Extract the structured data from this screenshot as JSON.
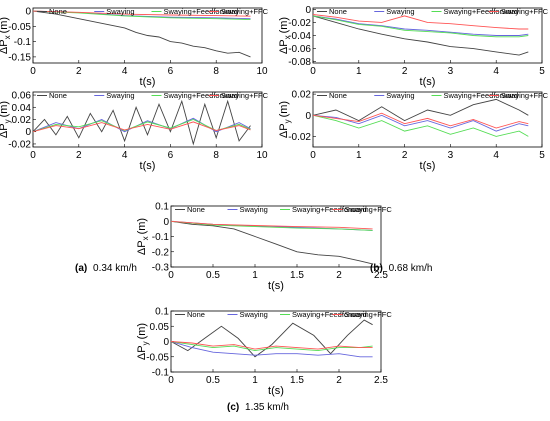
{
  "colors": {
    "None": "#444444",
    "Swaying": "#6666dd",
    "Swaying+Feedforward": "#55dd55",
    "Swaying+FFC": "#ff5555"
  },
  "captions": [
    {
      "letter": "(a)",
      "text": "0.34 km/h"
    },
    {
      "letter": "(b)",
      "text": "0.68 km/h"
    },
    {
      "letter": "(c)",
      "text": "1.35 km/h"
    }
  ],
  "chart_data": [
    {
      "id": "a-top",
      "type": "line",
      "xlabel": "t(s)",
      "ylabel": "ΔP",
      "ylabel_sub": "x",
      "ylabel_unit": "(m)",
      "xlim": [
        0,
        10
      ],
      "ylim": [
        -0.17,
        0.01
      ],
      "xticks": [
        0,
        2,
        4,
        6,
        8,
        10
      ],
      "yticks": [
        0,
        -0.05,
        -0.1,
        -0.15
      ],
      "yticklabels": [
        "0",
        "-0.05",
        "-0.1",
        "-0.15"
      ],
      "legend_position": "top",
      "series": [
        {
          "name": "None",
          "x": [
            0,
            1,
            2,
            3,
            4,
            4.5,
            5,
            5.5,
            6,
            6.5,
            7,
            7.5,
            8,
            8.5,
            9,
            9.5
          ],
          "y": [
            0,
            -0.01,
            -0.025,
            -0.04,
            -0.055,
            -0.07,
            -0.08,
            -0.085,
            -0.1,
            -0.105,
            -0.115,
            -0.12,
            -0.13,
            -0.138,
            -0.135,
            -0.15
          ]
        },
        {
          "name": "Swaying",
          "x": [
            0,
            2,
            4,
            6,
            8,
            9.5
          ],
          "y": [
            0,
            -0.005,
            -0.015,
            -0.02,
            -0.022,
            -0.025
          ]
        },
        {
          "name": "Swaying+Feedforward",
          "x": [
            0,
            2,
            4,
            6,
            8,
            9.5
          ],
          "y": [
            0,
            -0.006,
            -0.016,
            -0.022,
            -0.025,
            -0.028
          ]
        },
        {
          "name": "Swaying+FFC",
          "x": [
            0,
            2,
            4,
            6,
            8,
            9.5
          ],
          "y": [
            0,
            -0.004,
            -0.01,
            -0.013,
            -0.015,
            -0.017
          ]
        }
      ]
    },
    {
      "id": "a-bot",
      "type": "line",
      "xlabel": "t(s)",
      "ylabel": "ΔP",
      "ylabel_sub": "y",
      "ylabel_unit": "(m)",
      "xlim": [
        0,
        10
      ],
      "ylim": [
        -0.025,
        0.065
      ],
      "xticks": [
        0,
        2,
        4,
        6,
        8,
        10
      ],
      "yticks": [
        -0.02,
        0,
        0.02,
        0.04,
        0.06
      ],
      "yticklabels": [
        "-0.02",
        "0",
        "0.02",
        "0.04",
        "0.06"
      ],
      "legend_position": "top",
      "series": [
        {
          "name": "None",
          "x": [
            0,
            0.5,
            1,
            1.5,
            2,
            2.5,
            3,
            3.5,
            4,
            4.5,
            5,
            5.5,
            6,
            6.5,
            7,
            7.5,
            8,
            8.5,
            9,
            9.5
          ],
          "y": [
            0,
            0.02,
            -0.005,
            0.025,
            -0.01,
            0.03,
            0.0,
            0.035,
            -0.015,
            0.04,
            -0.005,
            0.045,
            0.0,
            0.05,
            -0.02,
            0.045,
            -0.01,
            0.05,
            -0.015,
            0.01
          ]
        },
        {
          "name": "Swaying",
          "x": [
            0,
            1,
            2,
            3,
            4,
            5,
            6,
            7,
            8,
            9,
            9.5
          ],
          "y": [
            0,
            0.015,
            0.005,
            0.02,
            0.0,
            0.018,
            0.005,
            0.022,
            0.0,
            0.015,
            0.005
          ]
        },
        {
          "name": "Swaying+Feedforward",
          "x": [
            0,
            1,
            2,
            3,
            4,
            5,
            6,
            7,
            8,
            9,
            9.5
          ],
          "y": [
            0,
            0.012,
            0.008,
            0.018,
            0.002,
            0.016,
            0.006,
            0.02,
            0.002,
            0.012,
            0.004
          ]
        },
        {
          "name": "Swaying+FFC",
          "x": [
            0,
            1,
            2,
            3,
            4,
            5,
            6,
            7,
            8,
            9,
            9.5
          ],
          "y": [
            0,
            0.01,
            0.005,
            0.015,
            0.003,
            0.012,
            0.004,
            0.016,
            0.002,
            0.01,
            0.003
          ]
        }
      ]
    },
    {
      "id": "b-top",
      "type": "line",
      "xlabel": "t(s)",
      "ylabel": "ΔP",
      "ylabel_sub": "x",
      "ylabel_unit": "(m)",
      "xlim": [
        0,
        5
      ],
      "ylim": [
        -0.082,
        0.002
      ],
      "xticks": [
        0,
        1,
        2,
        3,
        4,
        5
      ],
      "yticks": [
        0,
        -0.02,
        -0.04,
        -0.06,
        -0.08
      ],
      "yticklabels": [
        "0",
        "-0.02",
        "-0.04",
        "-0.06",
        "-0.08"
      ],
      "legend_position": "top",
      "series": [
        {
          "name": "None",
          "x": [
            0,
            0.5,
            1,
            1.5,
            2,
            2.5,
            3,
            3.5,
            4,
            4.5,
            4.7
          ],
          "y": [
            -0.01,
            -0.02,
            -0.03,
            -0.038,
            -0.045,
            -0.05,
            -0.057,
            -0.06,
            -0.065,
            -0.07,
            -0.065
          ]
        },
        {
          "name": "Swaying",
          "x": [
            0,
            0.5,
            1,
            1.5,
            2,
            2.5,
            3,
            3.5,
            4,
            4.5,
            4.7
          ],
          "y": [
            -0.01,
            -0.015,
            -0.022,
            -0.025,
            -0.03,
            -0.032,
            -0.035,
            -0.038,
            -0.04,
            -0.04,
            -0.038
          ]
        },
        {
          "name": "Swaying+Feedforward",
          "x": [
            0,
            0.5,
            1,
            1.5,
            2,
            2.5,
            3,
            3.5,
            4,
            4.5,
            4.7
          ],
          "y": [
            -0.01,
            -0.016,
            -0.023,
            -0.026,
            -0.032,
            -0.034,
            -0.036,
            -0.04,
            -0.042,
            -0.042,
            -0.04
          ]
        },
        {
          "name": "Swaying+FFC",
          "x": [
            0,
            0.5,
            1,
            1.5,
            2,
            2.5,
            3,
            3.5,
            4,
            4.5,
            4.7
          ],
          "y": [
            -0.008,
            -0.012,
            -0.018,
            -0.02,
            -0.01,
            -0.02,
            -0.022,
            -0.025,
            -0.028,
            -0.03,
            -0.03
          ]
        }
      ]
    },
    {
      "id": "b-bot",
      "type": "line",
      "xlabel": "t(s)",
      "ylabel": "ΔP",
      "ylabel_sub": "y",
      "ylabel_unit": "(m)",
      "xlim": [
        0,
        5
      ],
      "ylim": [
        -0.03,
        0.022
      ],
      "xticks": [
        0,
        1,
        2,
        3,
        4,
        5
      ],
      "yticks": [
        -0.02,
        0,
        0.02
      ],
      "yticklabels": [
        "-0.02",
        "0",
        "0.02"
      ],
      "legend_position": "top",
      "series": [
        {
          "name": "None",
          "x": [
            0,
            0.5,
            1,
            1.5,
            2,
            2.5,
            3,
            3.5,
            4,
            4.5,
            4.7
          ],
          "y": [
            0,
            0.005,
            -0.005,
            0.008,
            -0.005,
            0.005,
            0.0,
            0.01,
            0.015,
            0.005,
            0.0
          ]
        },
        {
          "name": "Swaying",
          "x": [
            0,
            0.5,
            1,
            1.5,
            2,
            2.5,
            3,
            3.5,
            4,
            4.5,
            4.7
          ],
          "y": [
            0,
            -0.002,
            -0.008,
            0.0,
            -0.01,
            -0.005,
            -0.012,
            -0.005,
            -0.015,
            -0.008,
            -0.01
          ]
        },
        {
          "name": "Swaying+Feedforward",
          "x": [
            0,
            0.5,
            1,
            1.5,
            2,
            2.5,
            3,
            3.5,
            4,
            4.5,
            4.7
          ],
          "y": [
            0,
            -0.005,
            -0.012,
            -0.005,
            -0.015,
            -0.01,
            -0.018,
            -0.012,
            -0.02,
            -0.015,
            -0.02
          ]
        },
        {
          "name": "Swaying+FFC",
          "x": [
            0,
            0.5,
            1,
            1.5,
            2,
            2.5,
            3,
            3.5,
            4,
            4.5,
            4.7
          ],
          "y": [
            0,
            -0.003,
            -0.006,
            0.002,
            -0.008,
            -0.003,
            -0.01,
            -0.004,
            -0.012,
            -0.006,
            -0.008
          ]
        }
      ]
    },
    {
      "id": "c-top",
      "type": "line",
      "xlabel": "t(s)",
      "ylabel": "ΔP",
      "ylabel_sub": "x",
      "ylabel_unit": "(m)",
      "xlim": [
        0,
        2.5
      ],
      "ylim": [
        -0.3,
        0.1
      ],
      "xticks": [
        0,
        0.5,
        1,
        1.5,
        2,
        2.5
      ],
      "yticks": [
        0.1,
        0,
        -0.1,
        -0.2,
        -0.3
      ],
      "yticklabels": [
        "0.1",
        "0",
        "-0.1",
        "-0.2",
        "-0.3"
      ],
      "legend_position": "top",
      "series": [
        {
          "name": "None",
          "x": [
            0,
            0.25,
            0.5,
            0.75,
            1,
            1.25,
            1.5,
            1.75,
            2,
            2.25,
            2.4
          ],
          "y": [
            0,
            -0.02,
            -0.03,
            -0.05,
            -0.1,
            -0.15,
            -0.2,
            -0.22,
            -0.23,
            -0.26,
            -0.28
          ]
        },
        {
          "name": "Swaying",
          "x": [
            0,
            0.5,
            1,
            1.5,
            2,
            2.4
          ],
          "y": [
            0,
            -0.02,
            -0.03,
            -0.04,
            -0.05,
            -0.06
          ]
        },
        {
          "name": "Swaying+Feedforward",
          "x": [
            0,
            0.5,
            1,
            1.5,
            2,
            2.4
          ],
          "y": [
            0,
            -0.025,
            -0.035,
            -0.045,
            -0.05,
            -0.06
          ]
        },
        {
          "name": "Swaying+FFC",
          "x": [
            0,
            0.5,
            1,
            1.5,
            2,
            2.4
          ],
          "y": [
            0,
            -0.02,
            -0.028,
            -0.035,
            -0.04,
            -0.05
          ]
        }
      ]
    },
    {
      "id": "c-bot",
      "type": "line",
      "xlabel": "t(s)",
      "ylabel": "ΔP",
      "ylabel_sub": "y",
      "ylabel_unit": "(m)",
      "xlim": [
        0,
        2.5
      ],
      "ylim": [
        -0.1,
        0.1
      ],
      "xticks": [
        0,
        0.5,
        1,
        1.5,
        2,
        2.5
      ],
      "yticks": [
        0.1,
        0.05,
        0,
        -0.05,
        -0.1
      ],
      "yticklabels": [
        "0.1",
        "0.05",
        "0",
        "-0.05",
        "-0.1"
      ],
      "legend_position": "top",
      "series": [
        {
          "name": "None",
          "x": [
            0,
            0.2,
            0.4,
            0.6,
            0.8,
            1,
            1.2,
            1.45,
            1.7,
            1.9,
            2.1,
            2.3,
            2.4
          ],
          "y": [
            0,
            -0.03,
            0.01,
            0.05,
            0.01,
            -0.05,
            -0.01,
            0.06,
            0.02,
            -0.04,
            0.02,
            0.07,
            0.055
          ]
        },
        {
          "name": "Swaying",
          "x": [
            0,
            0.25,
            0.5,
            0.75,
            1,
            1.25,
            1.5,
            1.75,
            2,
            2.25,
            2.4
          ],
          "y": [
            0,
            -0.02,
            -0.035,
            -0.04,
            -0.045,
            -0.04,
            -0.04,
            -0.045,
            -0.04,
            -0.05,
            -0.05
          ]
        },
        {
          "name": "Swaying+Feedforward",
          "x": [
            0,
            0.25,
            0.5,
            0.75,
            1,
            1.25,
            1.5,
            1.75,
            2,
            2.25,
            2.4
          ],
          "y": [
            0,
            -0.01,
            -0.02,
            -0.015,
            -0.03,
            -0.02,
            -0.025,
            -0.03,
            -0.02,
            -0.02,
            -0.015
          ]
        },
        {
          "name": "Swaying+FFC",
          "x": [
            0,
            0.25,
            0.5,
            0.75,
            1,
            1.25,
            1.5,
            1.75,
            2,
            2.25,
            2.4
          ],
          "y": [
            0,
            -0.005,
            -0.015,
            -0.01,
            -0.025,
            -0.015,
            -0.02,
            -0.025,
            -0.015,
            -0.02,
            -0.02
          ]
        }
      ]
    }
  ]
}
